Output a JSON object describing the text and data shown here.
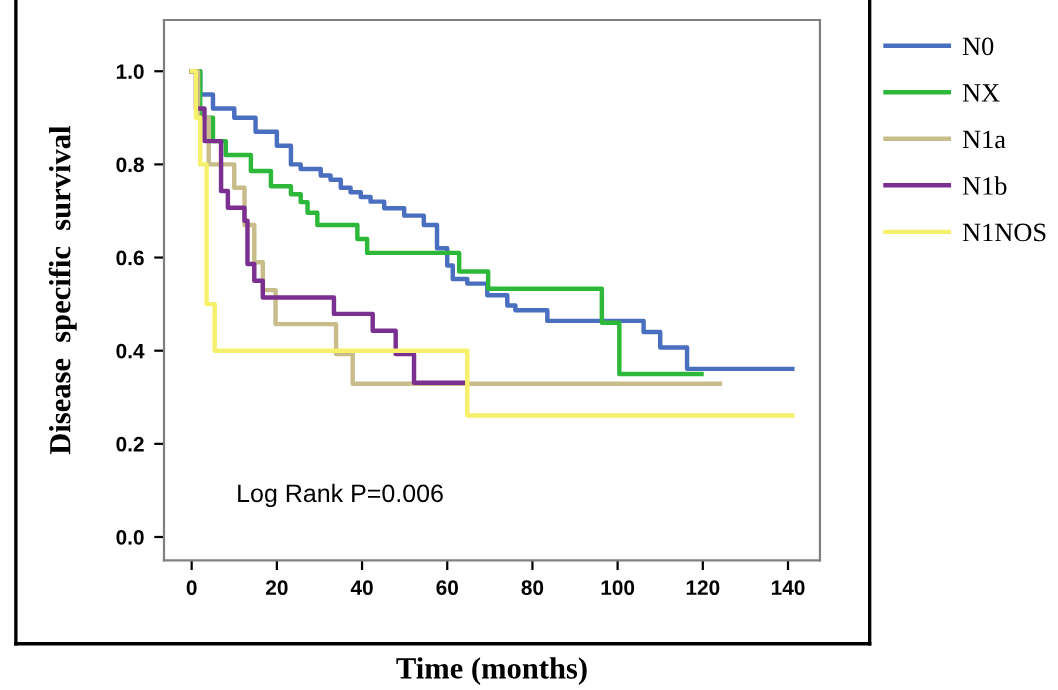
{
  "chart_data": {
    "type": "step",
    "xlabel": "Time (months)",
    "ylabel": "Disease  specific  survival",
    "xlim": [
      -6.5,
      147.5
    ],
    "ylim": [
      -0.05,
      1.11
    ],
    "xticks": [
      0,
      20,
      40,
      60,
      80,
      100,
      120,
      140
    ],
    "yticks": [
      {
        "value": 0,
        "label": "0.0"
      },
      {
        "value": 0.2,
        "label": "0.2"
      },
      {
        "value": 0.4,
        "label": "0.4"
      },
      {
        "value": 0.6,
        "label": "0.6"
      },
      {
        "value": 0.8,
        "label": "0.8"
      },
      {
        "value": 1,
        "label": "1.0"
      }
    ],
    "grid": false,
    "legend": "right",
    "annotations": [
      "Log Rank P=0.006"
    ],
    "series": [
      {
        "name": "N0",
        "color": "#4a6fc0",
        "x": [
          0,
          2,
          5,
          10,
          15,
          20,
          23.3,
          25.6,
          30.3,
          32.6,
          35,
          37.3,
          39.7,
          42,
          45.2,
          49.9,
          54.5,
          57.6,
          60,
          61.3,
          64.7,
          69.4,
          74.1,
          76,
          83.5,
          106.1,
          110,
          116.3,
          141
        ],
        "values": [
          1,
          0.95,
          0.92,
          0.9,
          0.87,
          0.84,
          0.8,
          0.79,
          0.776,
          0.767,
          0.75,
          0.74,
          0.73,
          0.72,
          0.706,
          0.69,
          0.67,
          0.62,
          0.583,
          0.554,
          0.544,
          0.519,
          0.497,
          0.487,
          0.464,
          0.44,
          0.407,
          0.361,
          0.361
        ]
      },
      {
        "name": "NX",
        "color": "#2db83a",
        "x": [
          0,
          2,
          5,
          8,
          13.9,
          18.6,
          23.3,
          25.6,
          27.2,
          29.5,
          38.9,
          41.2,
          62.8,
          69.6,
          96.3,
          100.4,
          119.7
        ],
        "values": [
          1,
          0.9,
          0.85,
          0.82,
          0.786,
          0.753,
          0.736,
          0.719,
          0.696,
          0.67,
          0.64,
          0.61,
          0.57,
          0.533,
          0.46,
          0.35,
          0.35
        ]
      },
      {
        "name": "N1a",
        "color": "#c8bd8a",
        "x": [
          0,
          1.5,
          4,
          10,
          12.4,
          14.7,
          16.7,
          19.7,
          33.9,
          37.8,
          124
        ],
        "values": [
          1,
          0.9,
          0.8,
          0.75,
          0.67,
          0.59,
          0.53,
          0.457,
          0.393,
          0.329,
          0.329
        ]
      },
      {
        "name": "N1b",
        "color": "#7b2f91",
        "x": [
          0,
          1,
          3,
          6.9,
          8.5,
          12.4,
          13.1,
          14.7,
          16.7,
          33.4,
          42.5,
          47.9,
          52.2,
          64.2
        ],
        "values": [
          1,
          0.92,
          0.85,
          0.743,
          0.707,
          0.679,
          0.586,
          0.55,
          0.514,
          0.479,
          0.443,
          0.393,
          0.331,
          0.331
        ]
      },
      {
        "name": "N1NOS",
        "color": "#f7f06a",
        "x": [
          0,
          1,
          2,
          3.5,
          5.4,
          64.7,
          141
        ],
        "values": [
          1,
          0.9,
          0.8,
          0.5,
          0.4,
          0.261,
          0.261
        ]
      }
    ]
  }
}
